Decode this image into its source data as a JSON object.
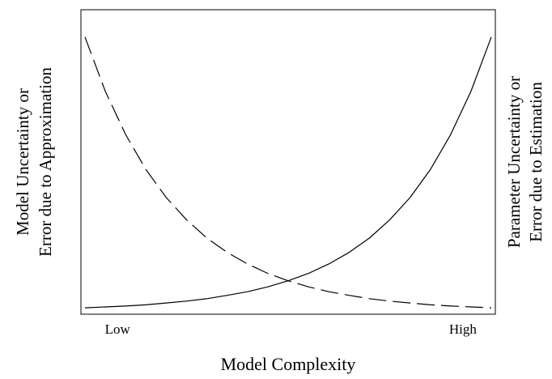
{
  "chart_data": {
    "type": "line",
    "x_label": "Model Complexity",
    "y_label": [
      "Model Uncertainty or",
      "Error due to Approximation"
    ],
    "y2_label": [
      "Parameter Uncertainty or",
      "Error due to Estimation"
    ],
    "x": [
      0,
      0.5,
      1,
      1.5,
      2,
      2.5,
      3,
      3.5,
      4,
      4.5,
      5,
      5.5,
      6,
      6.5,
      7,
      7.5,
      8,
      8.5,
      9,
      9.5,
      10
    ],
    "xlim": [
      -0.1,
      10.1
    ],
    "xticks": [
      {
        "value": 0.8,
        "label": "Low"
      },
      {
        "value": 9.3,
        "label": "High"
      }
    ],
    "ylim": [
      0,
      10
    ],
    "series": [
      {
        "color": "#000000",
        "dash": "dashed",
        "values": [
          9.1,
          7.32,
          5.9,
          4.75,
          3.83,
          3.1,
          2.5,
          2.03,
          1.65,
          1.34,
          1.1,
          0.9,
          0.74,
          0.62,
          0.51,
          0.43,
          0.37,
          0.31,
          0.27,
          0.24,
          0.21
        ]
      },
      {
        "color": "#000000",
        "dash": "solid",
        "values": [
          0.21,
          0.24,
          0.27,
          0.31,
          0.37,
          0.43,
          0.51,
          0.62,
          0.74,
          0.9,
          1.1,
          1.34,
          1.65,
          2.03,
          2.5,
          3.1,
          3.83,
          4.75,
          5.9,
          7.32,
          9.1
        ]
      }
    ]
  }
}
